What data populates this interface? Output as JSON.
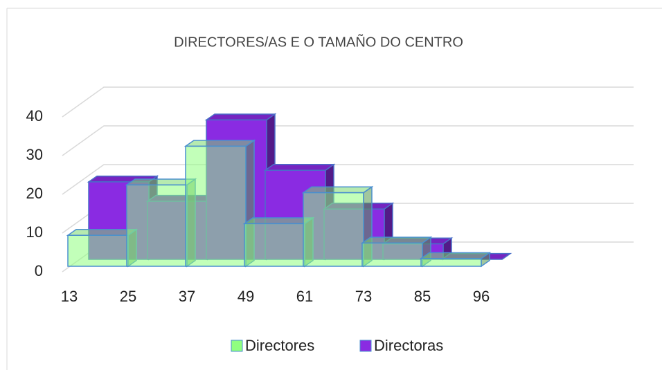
{
  "chart_data": {
    "type": "histogram",
    "title": "DIRECTORES/AS E O TAMAÑO DO CENTRO",
    "bins": [
      13,
      25,
      37,
      49,
      61,
      73,
      85,
      96
    ],
    "series": [
      {
        "name": "Directores",
        "color": "#90ff80",
        "values": [
          8,
          21,
          31,
          11,
          19,
          6,
          2
        ]
      },
      {
        "name": "Directoras",
        "color": "#8a2be2",
        "values": [
          20,
          15,
          36,
          23,
          13,
          4,
          0
        ]
      }
    ],
    "ylim": [
      0,
      40
    ],
    "yticks": [
      0,
      10,
      20,
      30,
      40
    ],
    "grid": true,
    "legend": "bottom"
  }
}
